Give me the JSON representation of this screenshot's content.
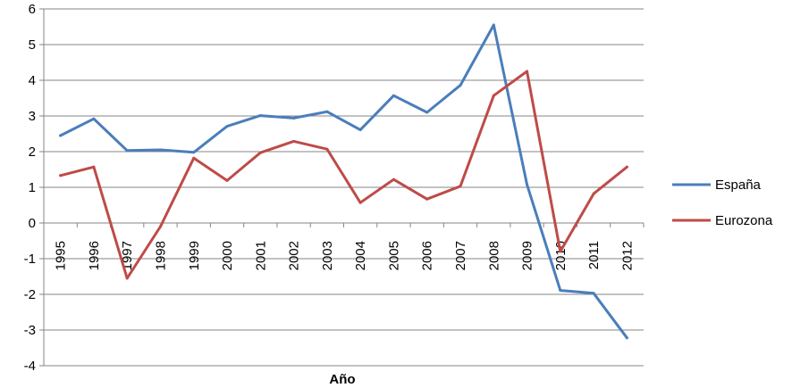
{
  "chart_data": {
    "type": "line",
    "title": "",
    "xlabel": "Año",
    "ylabel": "",
    "ylim": [
      -4,
      6
    ],
    "yticks": [
      -4,
      -3,
      -2,
      -1,
      0,
      1,
      2,
      3,
      4,
      5,
      6
    ],
    "grid": "horizontal",
    "legend_position": "right",
    "categories": [
      "1995",
      "1996",
      "1997",
      "1998",
      "1999",
      "2000",
      "2001",
      "2002",
      "2003",
      "2004",
      "2005",
      "2006",
      "2007",
      "2008",
      "2009",
      "2010",
      "2011",
      "2012"
    ],
    "series": [
      {
        "name": "España",
        "color": "#4a7ebb",
        "values": [
          2.45,
          2.92,
          2.03,
          2.05,
          1.98,
          2.71,
          3.01,
          2.94,
          3.12,
          2.61,
          3.57,
          3.1,
          3.86,
          5.55,
          1.08,
          -1.89,
          -1.97,
          -3.22
        ]
      },
      {
        "name": "Eurozona",
        "color": "#be4b48",
        "values": [
          1.33,
          1.57,
          -1.55,
          -0.1,
          1.82,
          1.19,
          1.97,
          2.29,
          2.07,
          0.57,
          1.22,
          0.67,
          1.03,
          3.57,
          4.25,
          -0.8,
          0.82,
          1.57
        ]
      }
    ]
  }
}
